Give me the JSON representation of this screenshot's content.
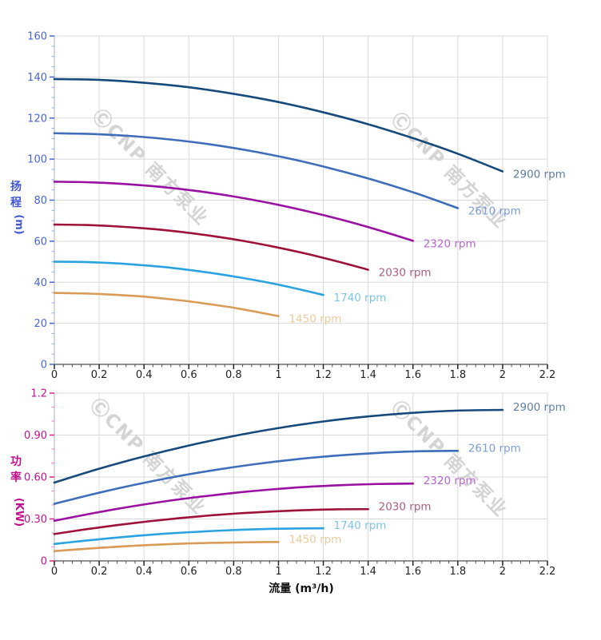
{
  "watermark": {
    "text": "ⒸCNP 南方泵业",
    "color": "#d4d4d4"
  },
  "chart_data": [
    {
      "type": "line",
      "title": "",
      "xlabel": "",
      "ylabel": "扬程 (m)",
      "ylabel_chars": [
        "扬",
        "程"
      ],
      "ylabel_unit": "(m)",
      "xlim": [
        0,
        2.2
      ],
      "ylim": [
        0,
        160
      ],
      "x_major_step": 0.2,
      "x_minor_step": 0.04,
      "y_major_step": 20,
      "y_minor_step": 5,
      "x_tick_labels": [
        "0",
        "0.2",
        "0.4",
        "0.6",
        "0.8",
        "1",
        "1.2",
        "1.4",
        "1.6",
        "1.8",
        "2",
        "2.2"
      ],
      "y_tick_labels": [
        "0",
        "20",
        "40",
        "60",
        "80",
        "100",
        "120",
        "140",
        "160"
      ],
      "grid_color": "#d9d9d9",
      "axis_title_color": "#3f56cf",
      "y_tick_label_color": "#4a66d4",
      "y_tick_major_color": "#4a66d4",
      "y_tick_minor_color": "#97aae8",
      "x_tick_label_color": "#222222",
      "legend_position": "curve-end-labels",
      "series": [
        {
          "name": "2900 rpm",
          "color": "#174a7c",
          "label_color": "#5e7da1",
          "x": [
            0,
            0.2,
            0.4,
            0.6,
            0.8,
            1,
            1.2,
            1.4,
            1.6,
            1.8,
            2
          ],
          "y": [
            139,
            138.6,
            137.2,
            135,
            131.8,
            127.8,
            122.8,
            117,
            110.2,
            102.6,
            94
          ]
        },
        {
          "name": "2610 rpm",
          "color": "#3e6dba",
          "label_color": "#7b9edb",
          "x": [
            0,
            0.18,
            0.36,
            0.54,
            0.72,
            0.9,
            1.08,
            1.26,
            1.44,
            1.62,
            1.8
          ],
          "y": [
            112.6,
            112.2,
            111.1,
            109.3,
            106.8,
            103.5,
            99.5,
            94.7,
            89.3,
            83.1,
            76.1
          ]
        },
        {
          "name": "2320 rpm",
          "color": "#9a10a0",
          "label_color": "#b765cf",
          "x": [
            0,
            0.16,
            0.32,
            0.48,
            0.64,
            0.8,
            0.96,
            1.12,
            1.28,
            1.44,
            1.6
          ],
          "y": [
            89,
            88.7,
            87.8,
            86.4,
            84.4,
            81.8,
            78.6,
            74.8,
            70.5,
            65.6,
            60.2
          ]
        },
        {
          "name": "2030 rpm",
          "color": "#9e1239",
          "label_color": "#ad5f7e",
          "x": [
            0,
            0.14,
            0.28,
            0.42,
            0.56,
            0.7,
            0.84,
            0.98,
            1.12,
            1.26,
            1.4
          ],
          "y": [
            68.1,
            67.9,
            67.2,
            66.1,
            64.6,
            62.6,
            60.2,
            57.3,
            54,
            50.2,
            46.1
          ]
        },
        {
          "name": "1740 rpm",
          "color": "#2aa3e0",
          "label_color": "#7cc4ea",
          "x": [
            0,
            0.12,
            0.24,
            0.36,
            0.48,
            0.6,
            0.72,
            0.84,
            0.96,
            1.08,
            1.2
          ],
          "y": [
            50,
            49.9,
            49.4,
            48.6,
            47.5,
            46,
            44.2,
            42.1,
            39.7,
            36.9,
            33.8
          ]
        },
        {
          "name": "1450 rpm",
          "color": "#d99b55",
          "label_color": "#ecca9e",
          "x": [
            0,
            0.1,
            0.2,
            0.3,
            0.4,
            0.5,
            0.6,
            0.7,
            0.8,
            0.9,
            1
          ],
          "y": [
            34.8,
            34.6,
            34.3,
            33.7,
            33,
            31.9,
            30.7,
            29.2,
            27.6,
            25.6,
            23.5
          ]
        }
      ]
    },
    {
      "type": "line",
      "title": "",
      "xlabel": "流量 (m³/h)",
      "ylabel": "功率 (KW)",
      "ylabel_chars": [
        "功",
        "率"
      ],
      "ylabel_unit": "(KW)",
      "xlim": [
        0,
        2.2
      ],
      "ylim": [
        0,
        1.2
      ],
      "x_major_step": 0.2,
      "x_minor_step": 0.04,
      "y_major_step": 0.3,
      "y_minor_step": 0.1,
      "x_tick_labels": [
        "0",
        "0.2",
        "0.4",
        "0.6",
        "0.8",
        "1",
        "1.2",
        "1.4",
        "1.6",
        "1.8",
        "2",
        "2.2"
      ],
      "y_tick_labels": [
        "0",
        "0.30",
        "0.60",
        "0.90",
        "1.2"
      ],
      "grid_color": "#d9d9d9",
      "axis_title_color": "#c0108a",
      "y_tick_label_color": "#c2138c",
      "y_tick_major_color": "#e0218a",
      "y_tick_minor_color": "#f07ec4",
      "x_tick_label_color": "#222222",
      "legend_position": "curve-end-labels",
      "series": [
        {
          "name": "2900 rpm",
          "color": "#174a7c",
          "label_color": "#5e7da1",
          "x": [
            0,
            0.2,
            0.4,
            0.6,
            0.8,
            1,
            1.2,
            1.4,
            1.6,
            1.8,
            2
          ],
          "y": [
            0.56,
            0.659,
            0.747,
            0.825,
            0.893,
            0.95,
            0.997,
            1.033,
            1.059,
            1.075,
            1.08
          ]
        },
        {
          "name": "2610 rpm",
          "color": "#3e6dba",
          "label_color": "#7b9edb",
          "x": [
            0,
            0.18,
            0.36,
            0.54,
            0.72,
            0.9,
            1.08,
            1.26,
            1.44,
            1.62,
            1.8
          ],
          "y": [
            0.408,
            0.48,
            0.545,
            0.602,
            0.651,
            0.693,
            0.727,
            0.753,
            0.772,
            0.784,
            0.787
          ]
        },
        {
          "name": "2320 rpm",
          "color": "#9a10a0",
          "label_color": "#b765cf",
          "x": [
            0,
            0.16,
            0.32,
            0.48,
            0.64,
            0.8,
            0.96,
            1.12,
            1.28,
            1.44,
            1.6
          ],
          "y": [
            0.287,
            0.337,
            0.383,
            0.423,
            0.457,
            0.486,
            0.51,
            0.529,
            0.542,
            0.55,
            0.553
          ]
        },
        {
          "name": "2030 rpm",
          "color": "#9e1239",
          "label_color": "#ad5f7e",
          "x": [
            0,
            0.14,
            0.28,
            0.42,
            0.56,
            0.7,
            0.84,
            0.98,
            1.12,
            1.26,
            1.4
          ],
          "y": [
            0.192,
            0.226,
            0.256,
            0.283,
            0.306,
            0.326,
            0.342,
            0.354,
            0.363,
            0.369,
            0.37
          ]
        },
        {
          "name": "1740 rpm",
          "color": "#2aa3e0",
          "label_color": "#7cc4ea",
          "x": [
            0,
            0.12,
            0.24,
            0.36,
            0.48,
            0.6,
            0.72,
            0.84,
            0.96,
            1.08,
            1.2
          ],
          "y": [
            0.121,
            0.142,
            0.161,
            0.178,
            0.193,
            0.205,
            0.215,
            0.223,
            0.229,
            0.232,
            0.233
          ]
        },
        {
          "name": "1450 rpm",
          "color": "#d99b55",
          "label_color": "#ecca9e",
          "x": [
            0,
            0.1,
            0.2,
            0.3,
            0.4,
            0.5,
            0.6,
            0.7,
            0.8,
            0.9,
            1
          ],
          "y": [
            0.07,
            0.082,
            0.093,
            0.103,
            0.112,
            0.119,
            0.125,
            0.129,
            0.132,
            0.134,
            0.135
          ]
        }
      ]
    }
  ]
}
